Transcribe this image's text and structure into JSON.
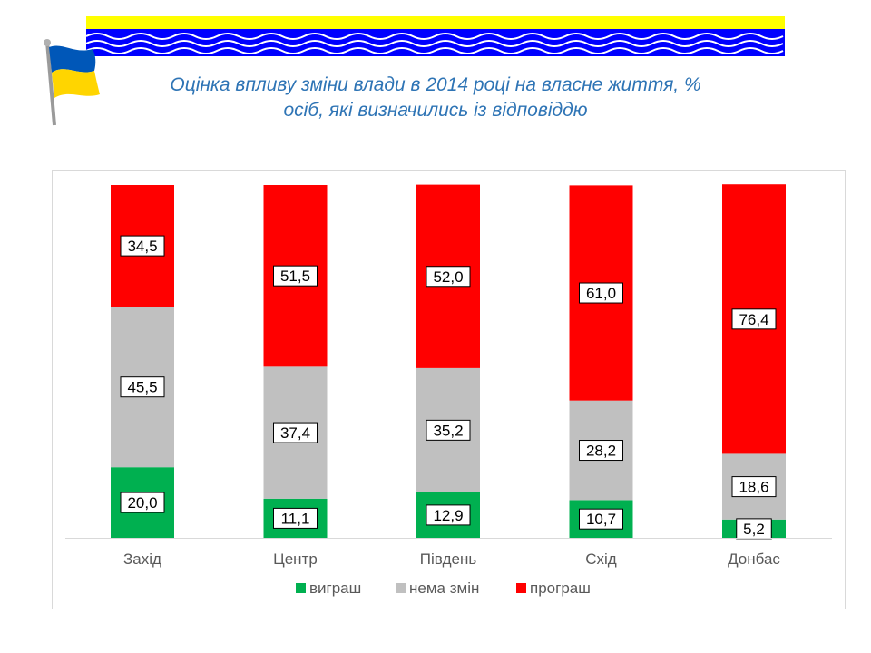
{
  "title": {
    "line1": "Оцінка впливу зміни влади в 2014 році на власне життя, %",
    "line2": "осіб, які визначились із відповіддю"
  },
  "colors": {
    "win": "#00b050",
    "no_change": "#c0c0c0",
    "loss": "#ff0000",
    "title": "#2e74b5",
    "banner_yellow": "#ffff00",
    "banner_blue": "#0000ff",
    "flag_blue": "#0057b8",
    "flag_yellow": "#ffd500"
  },
  "chart_data": {
    "type": "bar",
    "stacked": true,
    "title": "Оцінка впливу зміни влади в 2014 році на власне життя, % осіб, які визначились із відповіддю",
    "categories": [
      "Захід",
      "Центр",
      "Південь",
      "Схід",
      "Донбас"
    ],
    "series": [
      {
        "name": "виграш",
        "color": "#00b050",
        "values": [
          20.0,
          11.1,
          12.9,
          10.7,
          5.2
        ],
        "labels": [
          "20,0",
          "11,1",
          "12,9",
          "10,7",
          "5,2"
        ]
      },
      {
        "name": "нема змін",
        "color": "#c0c0c0",
        "values": [
          45.5,
          37.4,
          35.2,
          28.2,
          18.6
        ],
        "labels": [
          "45,5",
          "37,4",
          "35,2",
          "28,2",
          "18,6"
        ]
      },
      {
        "name": "програш",
        "color": "#ff0000",
        "values": [
          34.5,
          51.5,
          52.0,
          61.0,
          76.4
        ],
        "labels": [
          "34,5",
          "51,5",
          "52,0",
          "61,0",
          "76,4"
        ]
      }
    ],
    "ylim": [
      0,
      100
    ],
    "xlabel": "",
    "ylabel": "",
    "legend": "bottom",
    "grid": false
  }
}
